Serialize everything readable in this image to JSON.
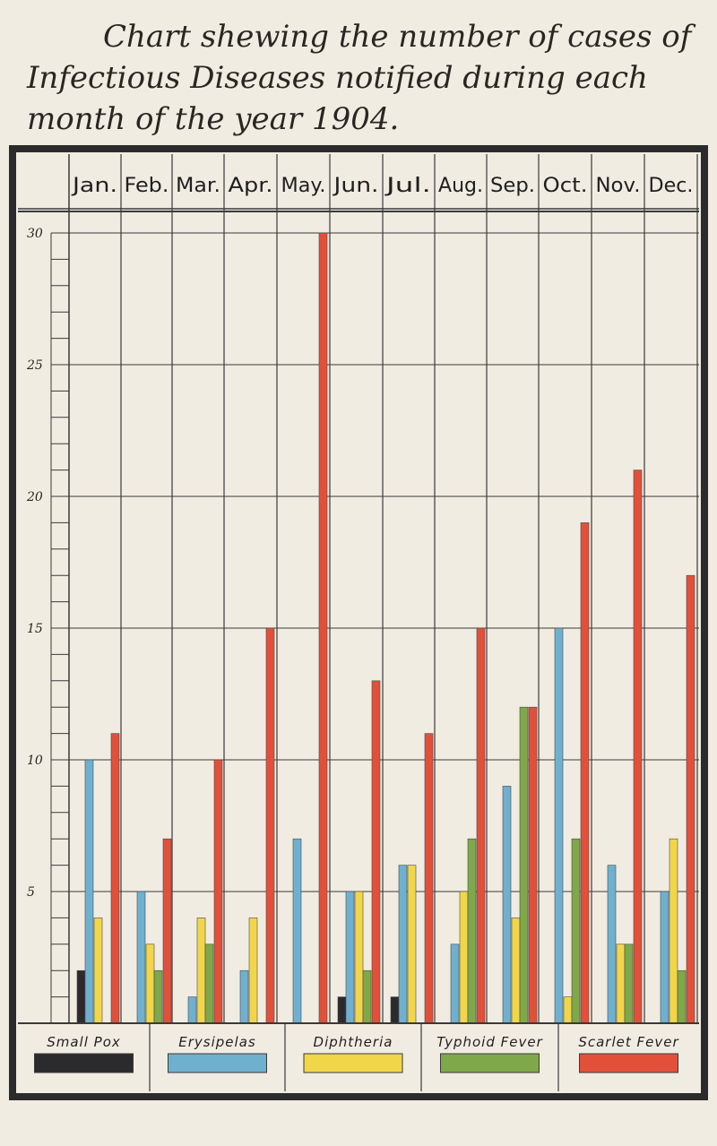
{
  "title_lines": [
    "Chart shewing the number of cases of",
    "Infectious Diseases notified during each",
    "month of the year 1904."
  ],
  "colors": {
    "small_pox": "#2b2b2e",
    "erysipelas": "#6fb0cf",
    "diphtheria": "#f2d64a",
    "typhoid": "#7fa84a",
    "scarlet": "#e2503a",
    "grid": "#3a3a3a",
    "frame": "#2b2b2b"
  },
  "chart_data": {
    "type": "bar",
    "title": "Chart shewing the number of cases of Infectious Diseases notified during each month of the year 1904.",
    "categories": [
      "Jan.",
      "Feb.",
      "Mar.",
      "Apr.",
      "May.",
      "Jun.",
      "Jul.",
      "Aug.",
      "Sep.",
      "Oct.",
      "Nov.",
      "Dec."
    ],
    "y_ticks": [
      "5",
      "10",
      "15",
      "20",
      "25",
      "30"
    ],
    "ylim": [
      0,
      30
    ],
    "grid": true,
    "legend_position": "bottom",
    "series": [
      {
        "name": "Small Pox",
        "color_key": "small_pox",
        "values": [
          2,
          0,
          0,
          0,
          0,
          1,
          1,
          0,
          0,
          0,
          0,
          0
        ]
      },
      {
        "name": "Erysipelas",
        "color_key": "erysipelas",
        "values": [
          10,
          5,
          1,
          2,
          7,
          5,
          6,
          3,
          9,
          15,
          6,
          5
        ]
      },
      {
        "name": "Diphtheria",
        "color_key": "diphtheria",
        "values": [
          4,
          3,
          4,
          4,
          0,
          5,
          6,
          5,
          4,
          1,
          3,
          7
        ]
      },
      {
        "name": "Typhoid Fever",
        "color_key": "typhoid",
        "values": [
          0,
          2,
          3,
          0,
          0,
          2,
          0,
          7,
          12,
          7,
          3,
          2
        ]
      },
      {
        "name": "Scarlet Fever",
        "color_key": "scarlet",
        "values": [
          11,
          7,
          10,
          15,
          30,
          13,
          11,
          15,
          12,
          19,
          21,
          17
        ]
      }
    ]
  }
}
